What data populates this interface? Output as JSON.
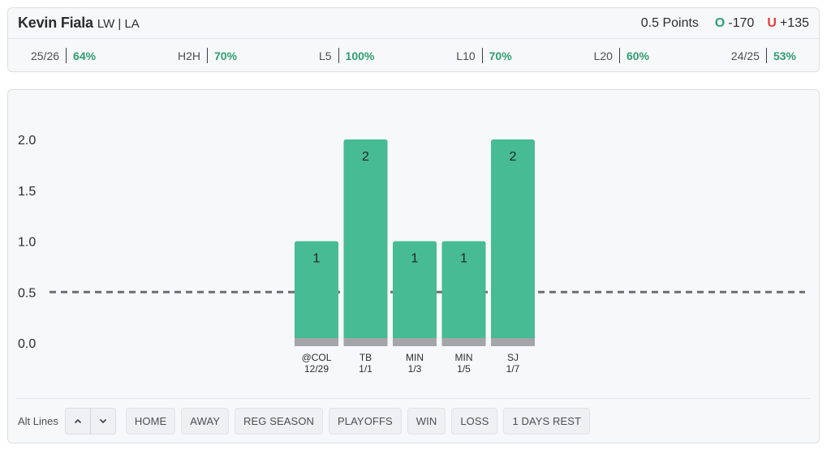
{
  "player": {
    "name": "Kevin Fiala",
    "meta": "LW | LA"
  },
  "line": {
    "label": "0.5 Points",
    "over_letter": "O",
    "over_odds": "-170",
    "under_letter": "U",
    "under_odds": "+135"
  },
  "stats": [
    {
      "label": "25/26",
      "value": "64%"
    },
    {
      "label": "H2H",
      "value": "70%"
    },
    {
      "label": "L5",
      "value": "100%"
    },
    {
      "label": "L10",
      "value": "70%"
    },
    {
      "label": "L20",
      "value": "60%"
    },
    {
      "label": "24/25",
      "value": "53%"
    }
  ],
  "colors": {
    "bar": "#47bb93",
    "bar_base": "#a3a5a8",
    "accent_green": "#2e9e6f",
    "under_red": "#e0403a",
    "line_dash": "#6b6e72"
  },
  "chart_data": {
    "type": "bar",
    "categories": [
      {
        "opponent": "@COL",
        "date": "12/29"
      },
      {
        "opponent": "TB",
        "date": "1/1"
      },
      {
        "opponent": "MIN",
        "date": "1/3"
      },
      {
        "opponent": "MIN",
        "date": "1/5"
      },
      {
        "opponent": "SJ",
        "date": "1/7"
      }
    ],
    "values": [
      1,
      2,
      1,
      1,
      2
    ],
    "threshold": 0.5,
    "yticks": [
      "0.0",
      "0.5",
      "1.0",
      "1.5",
      "2.0"
    ],
    "ylim": [
      0,
      2
    ]
  },
  "toolbar": {
    "alt_lines_label": "Alt Lines",
    "up_icon": "chevron-up-icon",
    "down_icon": "chevron-down-icon",
    "filters": [
      "HOME",
      "AWAY",
      "REG SEASON",
      "PLAYOFFS",
      "WIN",
      "LOSS",
      "1 DAYS REST"
    ]
  }
}
